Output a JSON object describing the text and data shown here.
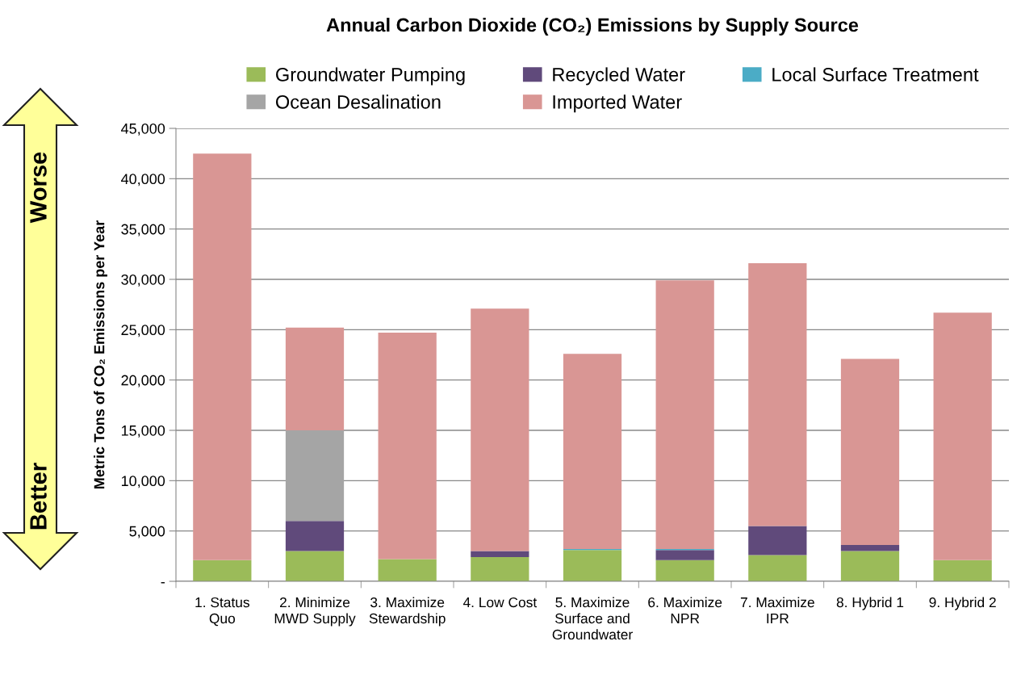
{
  "chart_data": {
    "type": "bar",
    "stacked": true,
    "title": "Annual Carbon Dioxide (CO₂) Emissions by Supply Source",
    "ylabel": "Metric Tons of CO₂ Emissions per Year",
    "categories": [
      "1. Status Quo",
      "2. Minimize MWD Supply",
      "3. Maximize Stewardship",
      "4. Low Cost",
      "5. Maximize Surface and Groundwater",
      "6. Maximize NPR",
      "7. Maximize IPR",
      "8. Hybrid 1",
      "9. Hybrid 2"
    ],
    "series": [
      {
        "name": "Groundwater Pumping",
        "color": "#9bbb59",
        "values": [
          2100,
          3000,
          2200,
          2400,
          3100,
          2100,
          2600,
          3000,
          2100
        ]
      },
      {
        "name": "Recycled Water",
        "color": "#604a7b",
        "values": [
          0,
          3000,
          0,
          600,
          0,
          1000,
          2900,
          600,
          0
        ]
      },
      {
        "name": "Local Surface Treatment",
        "color": "#4bacc6",
        "values": [
          0,
          0,
          0,
          0,
          100,
          100,
          0,
          0,
          0
        ]
      },
      {
        "name": "Ocean Desalination",
        "color": "#a5a5a5",
        "values": [
          0,
          9000,
          0,
          0,
          0,
          0,
          0,
          0,
          0
        ]
      },
      {
        "name": "Imported Water",
        "color": "#d99694",
        "values": [
          40400,
          10200,
          22500,
          24100,
          19400,
          26700,
          26100,
          18500,
          24600
        ]
      }
    ],
    "ylim": [
      0,
      45000
    ],
    "yticks": [
      {
        "value": 0,
        "label": "-"
      },
      {
        "value": 5000,
        "label": "5,000"
      },
      {
        "value": 10000,
        "label": "10,000"
      },
      {
        "value": 15000,
        "label": "15,000"
      },
      {
        "value": 20000,
        "label": "20,000"
      },
      {
        "value": 25000,
        "label": "25,000"
      },
      {
        "value": 30000,
        "label": "30,000"
      },
      {
        "value": 35000,
        "label": "35,000"
      },
      {
        "value": 40000,
        "label": "40,000"
      },
      {
        "value": 45000,
        "label": "45,000"
      }
    ],
    "grid": "y",
    "legend": "top",
    "annotations": [
      "Worse",
      "Better"
    ]
  }
}
